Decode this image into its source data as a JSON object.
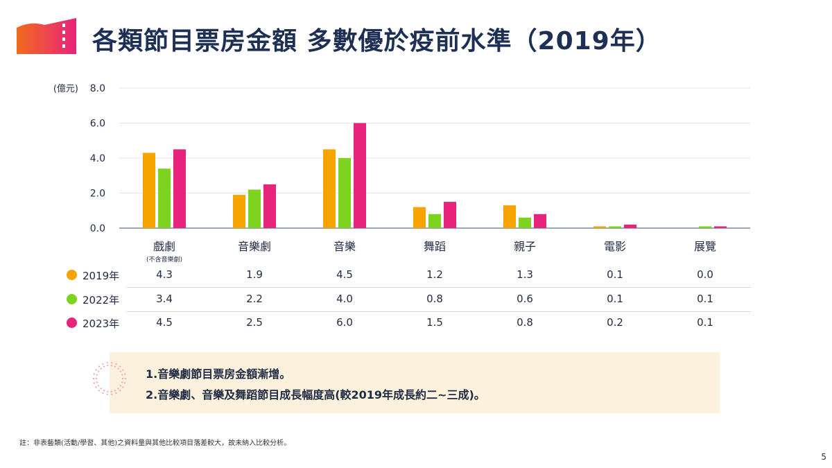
{
  "title": "各類節目票房金額 多數優於疫前水準（2019年）",
  "colors": {
    "s2019": "#f7a400",
    "s2022": "#7ed321",
    "s2023": "#e8237b",
    "title": "#1d2f55"
  },
  "chart_data": {
    "type": "bar",
    "ylabel": "(億元)",
    "ylim": [
      0,
      8
    ],
    "yticks": [
      "0.0",
      "2.0",
      "4.0",
      "6.0",
      "8.0"
    ],
    "grid": true,
    "categories": [
      "戲劇",
      "音樂劇",
      "音樂",
      "舞蹈",
      "親子",
      "電影",
      "展覽"
    ],
    "category_note": "(不含音樂劇)",
    "series": [
      {
        "name": "2019年",
        "values": [
          4.3,
          1.9,
          4.5,
          1.2,
          1.3,
          0.1,
          0.0
        ],
        "labels": [
          "4.3",
          "1.9",
          "4.5",
          "1.2",
          "1.3",
          "0.1",
          "0.0"
        ]
      },
      {
        "name": "2022年",
        "values": [
          3.4,
          2.2,
          4.0,
          0.8,
          0.6,
          0.1,
          0.1
        ],
        "labels": [
          "3.4",
          "2.2",
          "4.0",
          "0.8",
          "0.6",
          "0.1",
          "0.1"
        ]
      },
      {
        "name": "2023年",
        "values": [
          4.5,
          2.5,
          6.0,
          1.5,
          0.8,
          0.2,
          0.1
        ],
        "labels": [
          "4.5",
          "2.5",
          "6.0",
          "1.5",
          "0.8",
          "0.2",
          "0.1"
        ]
      }
    ]
  },
  "notes": [
    "1.音樂劇節目票房金額漸增。",
    "2.音樂劇、音樂及舞蹈節目成長幅度高(較2019年成長約二~三成)。"
  ],
  "footnote": "註：非表藝類(活動/學習、其他)之資料量與其他比較項目落差較大，故未納入比較分析。",
  "page_number": "5"
}
